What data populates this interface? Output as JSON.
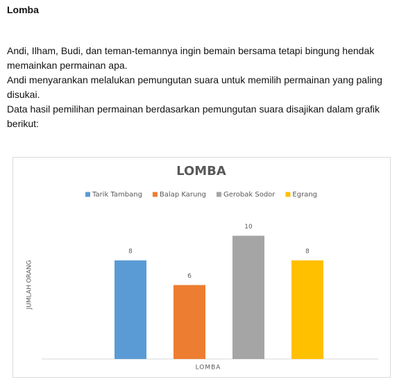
{
  "title": "Lomba",
  "paragraphs": [
    "Andi, Ilham, Budi, dan teman-temannya ingin bemain bersama tetapi bingung hendak memainkan permainan apa.",
    "Andi menyarankan melalukan pemungutan suara untuk memilih permainan yang paling disukai.",
    "Data hasil pemilihan permainan berdasarkan pemungutan suara disajikan dalam grafik berikut:"
  ],
  "chart_data": {
    "type": "bar",
    "title": "LOMBA",
    "x_label": "LOMBA",
    "y_label": "JUMLAH ORANG",
    "categories": [
      null
    ],
    "series": [
      {
        "name": "Tarik Tambang",
        "color": "#5b9bd5",
        "values": [
          8
        ]
      },
      {
        "name": "Balap Karung",
        "color": "#ed7d31",
        "values": [
          6
        ]
      },
      {
        "name": "Gerobak Sodor",
        "color": "#a5a5a5",
        "values": [
          10
        ]
      },
      {
        "name": "Egrang",
        "color": "#ffc000",
        "values": [
          8
        ]
      }
    ],
    "ylim": [
      0,
      12
    ],
    "grid": false,
    "legend": "top"
  }
}
